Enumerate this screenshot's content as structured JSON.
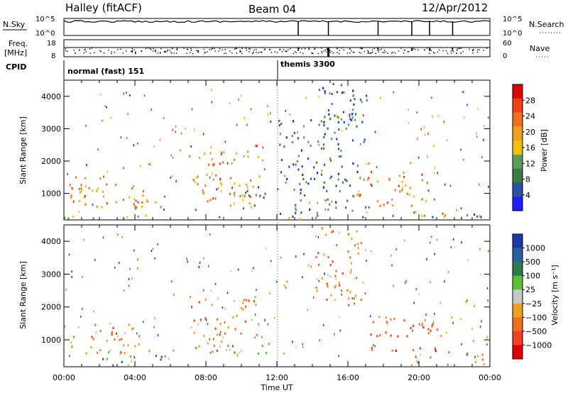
{
  "header": {
    "station": "Halley (fitACF)",
    "beam": "Beam 04",
    "date": "12/Apr/2012"
  },
  "summary": {
    "nsky_label": "N.Sky",
    "nsky_ticks": [
      "10^5",
      "10^0"
    ],
    "nsearch_label": "N.Search",
    "nsearch_ticks": [
      "10^5",
      "10^0"
    ],
    "freq_label": "Freq.",
    "freq_unit": "[MHz]",
    "freq_ticks": [
      "18",
      "8"
    ],
    "nave_label": "Nave",
    "nave_ticks": [
      "60",
      "0"
    ],
    "cpid_label": "CPID",
    "cpid_segments": [
      {
        "name": "normal (fast) 151",
        "start_hour": 0
      },
      {
        "name": "themis 3300",
        "start_hour": 12
      }
    ]
  },
  "colors": {
    "power_bar": [
      "#1e1eff",
      "#2a4fa8",
      "#3b7a3f",
      "#5a9e5a",
      "#f0c000",
      "#f0a020",
      "#f07020",
      "#f04010",
      "#e00000"
    ],
    "velocity_bar": [
      "#1a3aa8",
      "#2a5fa0",
      "#2e7a4a",
      "#5cc030",
      "#c8c8c8",
      "#f0a020",
      "#f07020",
      "#f04020",
      "#e00000"
    ]
  },
  "chart_data": [
    {
      "type": "heatmap",
      "title": "",
      "xlabel": "",
      "ylabel": "Slant Range [km]",
      "xlim": [
        0,
        24
      ],
      "ylim": [
        180,
        4500
      ],
      "x_ticks": [
        "00:00",
        "04:00",
        "08:00",
        "12:00",
        "16:00",
        "20:00",
        "00:00"
      ],
      "y_ticks": [
        1000,
        2000,
        3000,
        4000
      ],
      "colorbar": {
        "label": "Power [dB]",
        "ticks": [
          4,
          8,
          12,
          16,
          20,
          24,
          28
        ]
      },
      "regions": [
        {
          "t0": 0.2,
          "t1": 4.8,
          "r0": 500,
          "r1": 1600,
          "level": 24
        },
        {
          "t0": 4.0,
          "t1": 5.5,
          "r0": 300,
          "r1": 900,
          "level": 20
        },
        {
          "t0": 7.0,
          "t1": 11.0,
          "r0": 600,
          "r1": 2300,
          "level": 24
        },
        {
          "t0": 9.5,
          "t1": 11.8,
          "r0": 500,
          "r1": 1200,
          "level": 12
        },
        {
          "t0": 12.0,
          "t1": 16.5,
          "r0": 300,
          "r1": 3600,
          "level": 6
        },
        {
          "t0": 14.5,
          "t1": 17.0,
          "r0": 2500,
          "r1": 4400,
          "level": 8
        },
        {
          "t0": 16.0,
          "t1": 20.5,
          "r0": 600,
          "r1": 1700,
          "level": 22
        },
        {
          "t0": 19.5,
          "t1": 24.0,
          "r0": 200,
          "r1": 400,
          "level": 28
        },
        {
          "t0": 0.0,
          "t1": 24.0,
          "r0": 200,
          "r1": 320,
          "level": 12
        }
      ]
    },
    {
      "type": "heatmap",
      "title": "",
      "xlabel": "Time UT",
      "ylabel": "Slant Range [km]",
      "xlim": [
        0,
        24
      ],
      "ylim": [
        180,
        4500
      ],
      "x_ticks": [
        "00:00",
        "04:00",
        "08:00",
        "12:00",
        "16:00",
        "20:00",
        "00:00"
      ],
      "y_ticks": [
        1000,
        2000,
        3000,
        4000
      ],
      "colorbar": {
        "label": "Velocity [m s⁻¹]",
        "ticks": [
          "1000",
          "500",
          "100",
          "25",
          "−25",
          "−100",
          "−500",
          "−1000"
        ]
      },
      "regions": [
        {
          "t0": 0.2,
          "t1": 4.5,
          "r0": 500,
          "r1": 1500,
          "level": -100
        },
        {
          "t0": 2.0,
          "t1": 6.0,
          "r0": 200,
          "r1": 700,
          "level": 100
        },
        {
          "t0": 7.0,
          "t1": 11.0,
          "r0": 600,
          "r1": 2300,
          "level": -100
        },
        {
          "t0": 8.0,
          "t1": 12.0,
          "r0": 500,
          "r1": 900,
          "level": 0
        },
        {
          "t0": 14.0,
          "t1": 17.0,
          "r0": 2000,
          "r1": 4400,
          "level": -100
        },
        {
          "t0": 17.0,
          "t1": 21.0,
          "r0": 600,
          "r1": 1800,
          "level": -500
        },
        {
          "t0": 19.5,
          "t1": 24.0,
          "r0": 200,
          "r1": 600,
          "level": -100
        }
      ]
    }
  ]
}
